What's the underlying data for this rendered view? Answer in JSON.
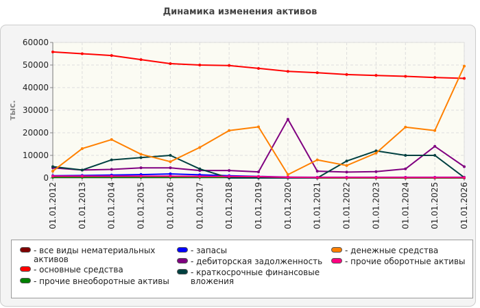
{
  "chart_data": {
    "type": "line",
    "title": "Динамика изменения активов",
    "ylabel": "тыс.",
    "xlabel": "",
    "ylim": [
      0,
      60000
    ],
    "y_ticks": [
      0,
      10000,
      20000,
      30000,
      40000,
      50000,
      60000
    ],
    "grid": true,
    "legend_position": "bottom",
    "categories": [
      "01.01.2012",
      "01.01.2013",
      "01.01.2014",
      "01.01.2015",
      "01.01.2016",
      "01.01.2017",
      "01.01.2018",
      "01.01.2019",
      "01.01.2020",
      "01.01.2021",
      "01.01.2022",
      "01.01.2023",
      "01.01.2024",
      "01.01.2025",
      "01.01.2026"
    ],
    "series": [
      {
        "name": "все виды нематериальных активов",
        "color": "#800000",
        "values": [
          500,
          500,
          600,
          700,
          800,
          700,
          500,
          300,
          100,
          0,
          0,
          0,
          0,
          0,
          0
        ]
      },
      {
        "name": "основные средства",
        "color": "#ff0000",
        "values": [
          55800,
          55000,
          54200,
          52400,
          50600,
          50000,
          49800,
          48500,
          47200,
          46600,
          45800,
          45400,
          45000,
          44500,
          44100
        ]
      },
      {
        "name": "прочие внеоборотные активы",
        "color": "#008000",
        "values": [
          300,
          300,
          300,
          300,
          300,
          300,
          300,
          300,
          200,
          100,
          100,
          100,
          100,
          100,
          100
        ]
      },
      {
        "name": "запасы",
        "color": "#0000ff",
        "values": [
          1000,
          1100,
          1300,
          1500,
          1800,
          1400,
          1000,
          700,
          400,
          300,
          300,
          300,
          300,
          300,
          300
        ]
      },
      {
        "name": "дебиторская задолженность",
        "color": "#800080",
        "values": [
          4500,
          3500,
          3800,
          4500,
          4500,
          3300,
          3300,
          2700,
          26000,
          3000,
          2600,
          2800,
          4000,
          14000,
          5000
        ]
      },
      {
        "name": "краткосрочные финансовые вложения",
        "color": "#004040",
        "values": [
          5000,
          3500,
          8000,
          9000,
          10000,
          4000,
          0,
          0,
          0,
          0,
          7500,
          12000,
          10000,
          10000,
          200
        ]
      },
      {
        "name": "денежные средства",
        "color": "#ff8000",
        "values": [
          3000,
          13000,
          17000,
          10500,
          7200,
          13500,
          21000,
          22600,
          1500,
          8000,
          5500,
          11000,
          22500,
          21000,
          49500
        ]
      },
      {
        "name": "прочие оборотные активы",
        "color": "#ff0080",
        "values": [
          800,
          800,
          800,
          800,
          800,
          700,
          700,
          600,
          300,
          200,
          200,
          200,
          200,
          200,
          200
        ]
      }
    ]
  },
  "legend": [
    {
      "label": "- все виды нематериальных активов",
      "color": "#800000"
    },
    {
      "label": "- основные средства",
      "color": "#ff0000"
    },
    {
      "label": "- прочие внеоборотные активы",
      "color": "#008000"
    },
    {
      "label": "- запасы",
      "color": "#0000ff"
    },
    {
      "label": "- дебиторская задолженность",
      "color": "#800080"
    },
    {
      "label": "- краткосрочные финансовые вложения",
      "color": "#004040"
    },
    {
      "label": "- денежные средства",
      "color": "#ff8000"
    },
    {
      "label": "- прочие оборотные активы",
      "color": "#ff0080"
    }
  ]
}
